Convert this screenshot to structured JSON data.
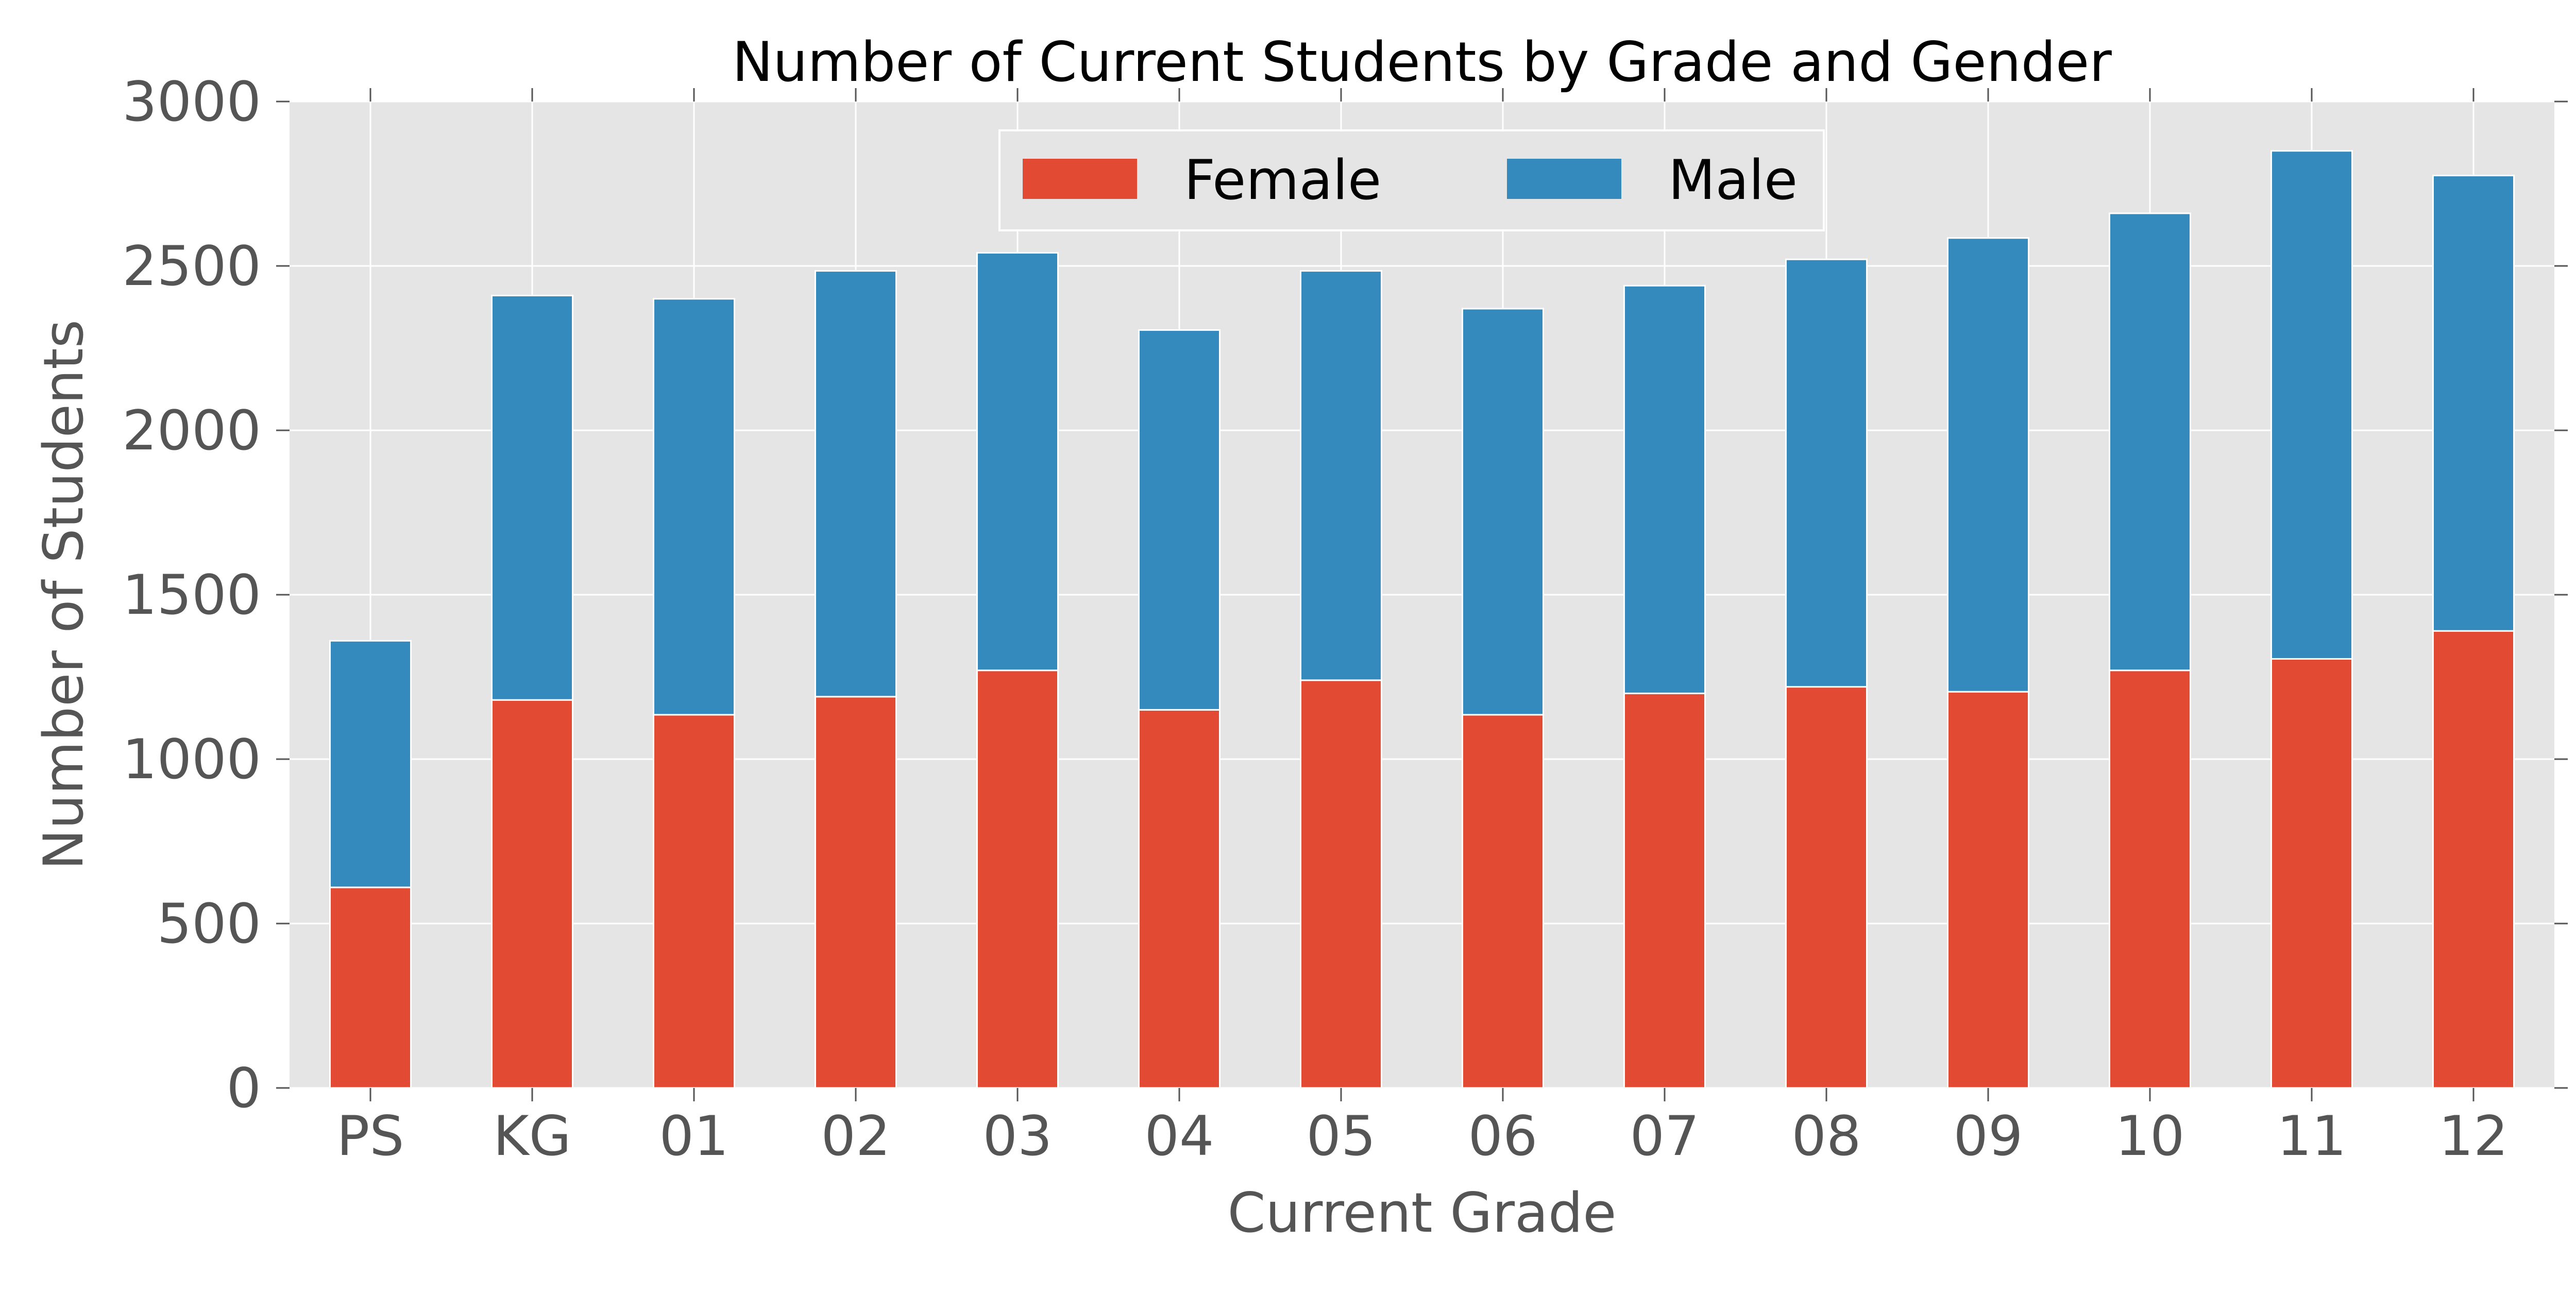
{
  "chart_data": {
    "type": "bar",
    "stacked": true,
    "title": "Number of Current Students by Grade and Gender",
    "xlabel": "Current Grade",
    "ylabel": "Number of Students",
    "categories": [
      "PS",
      "KG",
      "01",
      "02",
      "03",
      "04",
      "05",
      "06",
      "07",
      "08",
      "09",
      "10",
      "11",
      "12"
    ],
    "series": [
      {
        "name": "Female",
        "color": "#E24A33",
        "values": [
          610,
          1180,
          1135,
          1190,
          1270,
          1150,
          1240,
          1135,
          1200,
          1220,
          1205,
          1270,
          1305,
          1390
        ]
      },
      {
        "name": "Male",
        "color": "#348ABD",
        "values": [
          750,
          1230,
          1265,
          1295,
          1270,
          1155,
          1245,
          1235,
          1240,
          1300,
          1380,
          1390,
          1545,
          1385
        ]
      }
    ],
    "ylim": [
      0,
      3000
    ],
    "yticks": [
      "0",
      "500",
      "1000",
      "1500",
      "2000",
      "2500",
      "3000"
    ],
    "grid": true,
    "legend": "top-center",
    "background_color": "#E5E5E5",
    "grid_color": "#FFFFFF"
  }
}
